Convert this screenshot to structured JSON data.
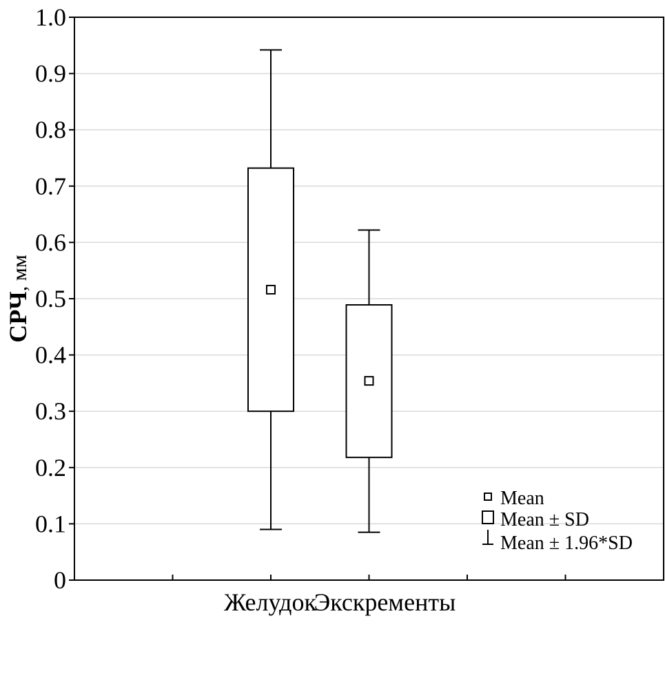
{
  "chart_data": {
    "type": "boxplot",
    "title": "",
    "ylabel": "СРЧ",
    "ylabel_unit": ", мм",
    "xlabel": "",
    "ylim": [
      0,
      1.0
    ],
    "yticks": [
      0,
      0.1,
      0.2,
      0.3,
      0.4,
      0.5,
      0.6,
      0.7,
      0.8,
      0.9,
      1.0
    ],
    "ytick_labels": [
      "0",
      "0.1",
      "0.2",
      "0.3",
      "0.4",
      "0.5",
      "0.6",
      "0.7",
      "0.8",
      "0.9",
      "1.0"
    ],
    "grid": true,
    "categories": [
      "Желудок",
      "Экскременты"
    ],
    "groups": [
      {
        "name": "Желудок",
        "mean": 0.516,
        "sd_low": 0.3,
        "sd_high": 0.732,
        "whisker_low": 0.09,
        "whisker_high": 0.942
      },
      {
        "name": "Экскременты",
        "mean": 0.354,
        "sd_low": 0.218,
        "sd_high": 0.489,
        "whisker_low": 0.085,
        "whisker_high": 0.622
      }
    ],
    "legend": {
      "position": "bottom-right",
      "items": [
        {
          "symbol": "mean",
          "label": "Mean"
        },
        {
          "symbol": "box",
          "label": "Mean ± SD"
        },
        {
          "symbol": "whisker",
          "label": "Mean ± 1.96*SD"
        }
      ]
    }
  }
}
